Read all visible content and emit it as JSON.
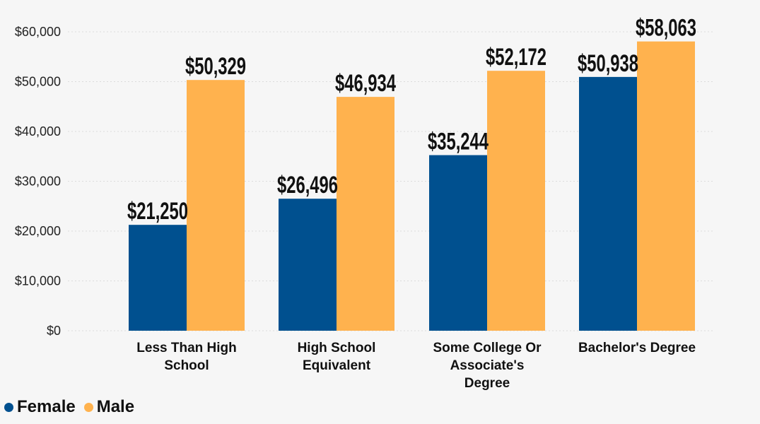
{
  "chart_data": {
    "type": "bar",
    "categories": [
      [
        "Less Than High",
        "School"
      ],
      [
        "High School",
        "Equivalent"
      ],
      [
        "Some College Or",
        "Associate's",
        "Degree"
      ],
      [
        "Bachelor's Degree"
      ]
    ],
    "series": [
      {
        "name": "Female",
        "color": "#00508f",
        "values": [
          21250,
          26496,
          35244,
          50938
        ],
        "labels": [
          "$21,250",
          "$26,496",
          "$35,244",
          "$50,938"
        ]
      },
      {
        "name": "Male",
        "color": "#ffb24e",
        "values": [
          50329,
          46934,
          52172,
          58063
        ],
        "labels": [
          "$50,329",
          "$46,934",
          "$52,172",
          "$58,063"
        ]
      }
    ],
    "ylim": [
      0,
      60000
    ],
    "yticks": [
      {
        "value": 0,
        "label": "$0"
      },
      {
        "value": 10000,
        "label": "$10,000"
      },
      {
        "value": 20000,
        "label": "$20,000"
      },
      {
        "value": 30000,
        "label": "$30,000"
      },
      {
        "value": 40000,
        "label": "$40,000"
      },
      {
        "value": 50000,
        "label": "$50,000"
      },
      {
        "value": 60000,
        "label": "$60,000"
      }
    ],
    "grid": true,
    "legend_position": "bottom-left",
    "title": "",
    "xlabel": "",
    "ylabel": ""
  }
}
